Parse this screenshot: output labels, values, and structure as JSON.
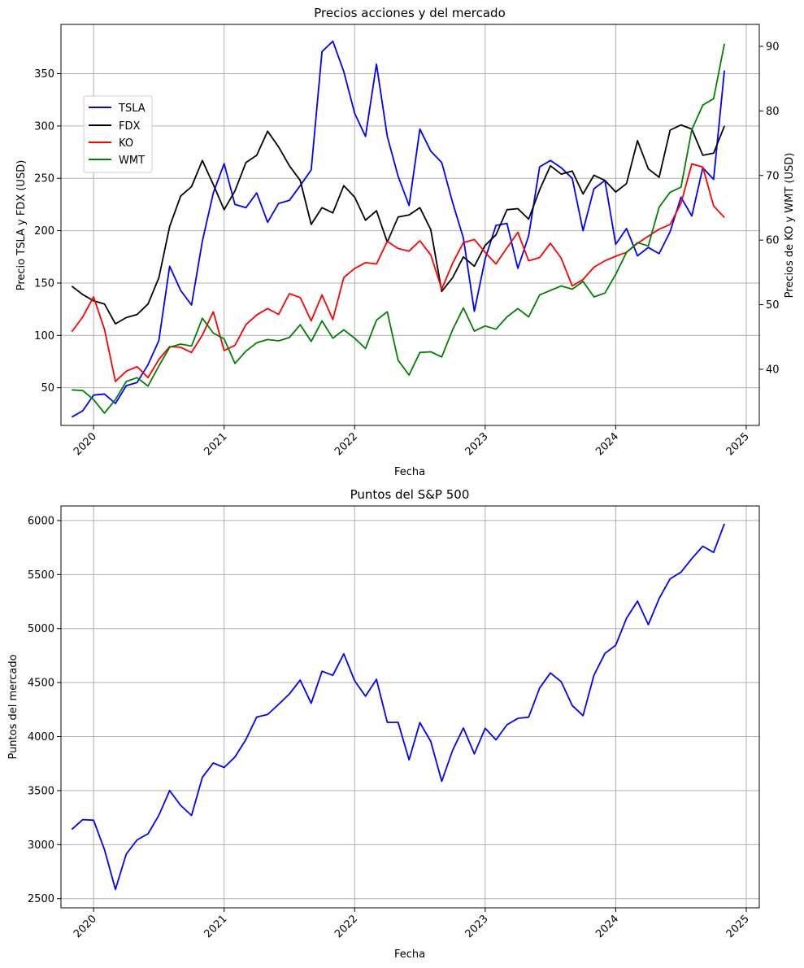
{
  "colors": {
    "tsla": "#0000ff",
    "fdx": "#000000",
    "ko": "#ff0000",
    "wmt": "#008000",
    "sp500": "#0000ff",
    "grid": "#b0b0b0"
  },
  "chart_data": [
    {
      "type": "line",
      "title": "Precios acciones y del mercado",
      "xlabel": "Fecha",
      "ylabel": "Precio TSLA y FDX (USD)",
      "y2label": "Precios de KO y WMT (USD)",
      "xlim": [
        2019.75,
        2025.1
      ],
      "ylim": [
        14,
        397
      ],
      "y2lim": [
        31.3,
        93.4
      ],
      "xticks": [
        2020,
        2021,
        2022,
        2023,
        2024,
        2025
      ],
      "xtick_labels": [
        "2020",
        "2021",
        "2022",
        "2023",
        "2024",
        "2025"
      ],
      "yticks": [
        50,
        100,
        150,
        200,
        250,
        300,
        350
      ],
      "yticks_labels": [
        "50",
        "100",
        "150",
        "200",
        "250",
        "300",
        "350"
      ],
      "y2ticks": [
        40,
        50,
        60,
        70,
        80,
        90
      ],
      "y2ticks_labels": [
        "40",
        "50",
        "60",
        "70",
        "80",
        "90"
      ],
      "legend_loc": "upper-left",
      "grid": true,
      "x": [
        2019.833,
        2019.917,
        2020.0,
        2020.083,
        2020.167,
        2020.25,
        2020.333,
        2020.417,
        2020.5,
        2020.583,
        2020.667,
        2020.75,
        2020.833,
        2020.917,
        2021.0,
        2021.083,
        2021.167,
        2021.25,
        2021.333,
        2021.417,
        2021.5,
        2021.583,
        2021.667,
        2021.75,
        2021.833,
        2021.917,
        2022.0,
        2022.083,
        2022.167,
        2022.25,
        2022.333,
        2022.417,
        2022.5,
        2022.583,
        2022.667,
        2022.75,
        2022.833,
        2022.917,
        2023.0,
        2023.083,
        2023.167,
        2023.25,
        2023.333,
        2023.417,
        2023.5,
        2023.583,
        2023.667,
        2023.75,
        2023.833,
        2023.917,
        2024.0,
        2024.083,
        2024.167,
        2024.25,
        2024.333,
        2024.417,
        2024.5,
        2024.583,
        2024.667,
        2024.75,
        2024.833
      ],
      "series": [
        {
          "name": "TSLA",
          "axis": "left",
          "color": "#0000ff",
          "values": [
            22,
            28,
            43,
            44,
            35,
            52,
            55,
            72,
            95,
            166,
            143,
            129,
            190,
            236,
            264,
            225,
            222,
            236,
            208,
            226,
            229,
            243,
            258,
            371,
            381,
            352,
            312,
            290,
            359,
            290,
            252,
            224,
            297,
            276,
            265,
            227,
            193,
            123,
            173,
            205,
            207,
            164,
            195,
            261,
            267,
            260,
            250,
            200,
            240,
            248,
            187,
            202,
            176,
            184,
            178,
            199,
            232,
            214,
            260,
            249,
            353
          ]
        },
        {
          "name": "FDX",
          "axis": "left",
          "color": "#000000",
          "values": [
            147,
            139,
            133,
            130,
            111,
            117,
            120,
            130,
            155,
            204,
            233,
            242,
            267,
            244,
            220,
            238,
            265,
            272,
            295,
            280,
            262,
            248,
            206,
            222,
            217,
            243,
            232,
            210,
            219,
            189,
            213,
            215,
            222,
            201,
            142,
            155,
            175,
            166,
            186,
            196,
            220,
            221,
            211,
            239,
            262,
            254,
            257,
            235,
            253,
            248,
            237,
            245,
            286,
            259,
            251,
            296,
            301,
            297,
            272,
            274,
            300
          ]
        },
        {
          "name": "KO",
          "axis": "right",
          "color": "#ff0000",
          "values": [
            45.8,
            48.1,
            51.2,
            46.2,
            38.1,
            39.7,
            40.4,
            38.7,
            41.5,
            43.5,
            43.4,
            42.6,
            45.3,
            48.9,
            42.9,
            43.7,
            46.9,
            48.4,
            49.4,
            48.5,
            51.7,
            51.1,
            47.5,
            51.5,
            47.7,
            54.2,
            55.6,
            56.5,
            56.3,
            59.8,
            58.7,
            58.3,
            59.9,
            57.7,
            52.4,
            56.4,
            59.6,
            60.1,
            58.1,
            56.3,
            58.8,
            61.2,
            56.8,
            57.3,
            59.5,
            57.2,
            52.9,
            53.9,
            55.8,
            56.8,
            57.5,
            58.1,
            59.5,
            60.6,
            61.7,
            62.4,
            65.7,
            71.8,
            71.3,
            65.3,
            63.5
          ]
        },
        {
          "name": "WMT",
          "axis": "right",
          "color": "#008000",
          "values": [
            36.8,
            36.7,
            35.3,
            33.2,
            35.3,
            38.1,
            38.7,
            37.4,
            40.5,
            43.4,
            43.9,
            43.6,
            47.9,
            45.6,
            44.7,
            40.9,
            42.8,
            44.1,
            44.6,
            44.4,
            44.9,
            46.9,
            44.3,
            47.5,
            44.8,
            46.1,
            44.8,
            43.2,
            47.6,
            48.9,
            41.4,
            39.1,
            42.6,
            42.7,
            41.9,
            46.1,
            49.5,
            45.9,
            46.7,
            46.2,
            48.1,
            49.4,
            48.1,
            51.5,
            52.2,
            52.9,
            52.4,
            53.6,
            51.2,
            51.8,
            54.7,
            58.1,
            59.6,
            59.1,
            65.1,
            67.4,
            68.2,
            77.1,
            80.9,
            81.9,
            90.4
          ]
        }
      ]
    },
    {
      "type": "line",
      "title": "Puntos del S&P 500",
      "xlabel": "Fecha",
      "ylabel": "Puntos del mercado",
      "xlim": [
        2019.75,
        2025.1
      ],
      "ylim": [
        2415,
        6135
      ],
      "xticks": [
        2020,
        2021,
        2022,
        2023,
        2024,
        2025
      ],
      "xtick_labels": [
        "2020",
        "2021",
        "2022",
        "2023",
        "2024",
        "2025"
      ],
      "yticks": [
        2500,
        3000,
        3500,
        4000,
        4500,
        5000,
        5500,
        6000
      ],
      "yticks_labels": [
        "2500",
        "3000",
        "3500",
        "4000",
        "4500",
        "5000",
        "5500",
        "6000"
      ],
      "grid": true,
      "x": [
        2019.833,
        2019.917,
        2020.0,
        2020.083,
        2020.167,
        2020.25,
        2020.333,
        2020.417,
        2020.5,
        2020.583,
        2020.667,
        2020.75,
        2020.833,
        2020.917,
        2021.0,
        2021.083,
        2021.167,
        2021.25,
        2021.333,
        2021.417,
        2021.5,
        2021.583,
        2021.667,
        2021.75,
        2021.833,
        2021.917,
        2022.0,
        2022.083,
        2022.167,
        2022.25,
        2022.333,
        2022.417,
        2022.5,
        2022.583,
        2022.667,
        2022.75,
        2022.833,
        2022.917,
        2023.0,
        2023.083,
        2023.167,
        2023.25,
        2023.333,
        2023.417,
        2023.5,
        2023.583,
        2023.667,
        2023.75,
        2023.833,
        2023.917,
        2024.0,
        2024.083,
        2024.167,
        2024.25,
        2024.333,
        2024.417,
        2024.5,
        2024.583,
        2024.667,
        2024.75,
        2024.833
      ],
      "series": [
        {
          "name": "S&P 500",
          "color": "#0000ff",
          "values": [
            3141,
            3231,
            3226,
            2954,
            2585,
            2912,
            3044,
            3100,
            3271,
            3500,
            3363,
            3270,
            3622,
            3756,
            3714,
            3811,
            3973,
            4181,
            4204,
            4298,
            4395,
            4523,
            4308,
            4605,
            4567,
            4766,
            4516,
            4374,
            4530,
            4132,
            4132,
            3785,
            4130,
            3955,
            3586,
            3872,
            4080,
            3840,
            4077,
            3970,
            4109,
            4169,
            4180,
            4450,
            4589,
            4508,
            4288,
            4194,
            4568,
            4770,
            4846,
            5096,
            5254,
            5036,
            5278,
            5460,
            5522,
            5648,
            5762,
            5705,
            5970
          ]
        }
      ]
    }
  ]
}
